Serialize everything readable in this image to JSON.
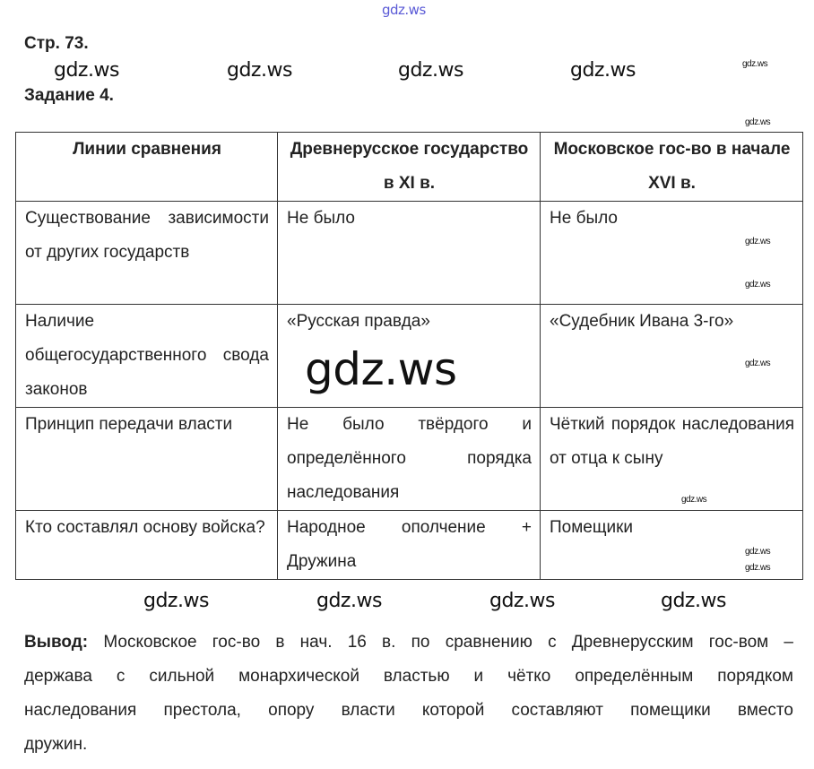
{
  "page_ref": "Стр. 73.",
  "task": "Задание 4.",
  "table": {
    "headers": [
      "Линии сравнения",
      "Древнерусское государство в XI в.",
      "Московское гос-во в начале XVI в."
    ],
    "rows": [
      [
        "Существование зависимости от других государств",
        "Не было",
        "Не было"
      ],
      [
        "Наличие общегосударственного свода законов",
        "«Русская правда»",
        "«Судебник Ивана 3-го»"
      ],
      [
        "Принцип передачи власти",
        "Не было твёрдого и определённого порядка наследования",
        "Чёткий порядок наследования от отца к сыну"
      ],
      [
        "Кто составлял основу войска?",
        "Народное ополчение + Дружина",
        "Помещики"
      ]
    ]
  },
  "conclusion": {
    "label": "Вывод:",
    "line1": "Московское гос-во в нач. 16 в. по сравнению с Древнерусским гос-вом –",
    "line2": "держава с сильной монархической властью и чётко определённым порядком",
    "line3": "наследования престола, опору власти которой составляют помещики вместо",
    "line4": "дружин."
  },
  "watermark": "gdz.ws"
}
